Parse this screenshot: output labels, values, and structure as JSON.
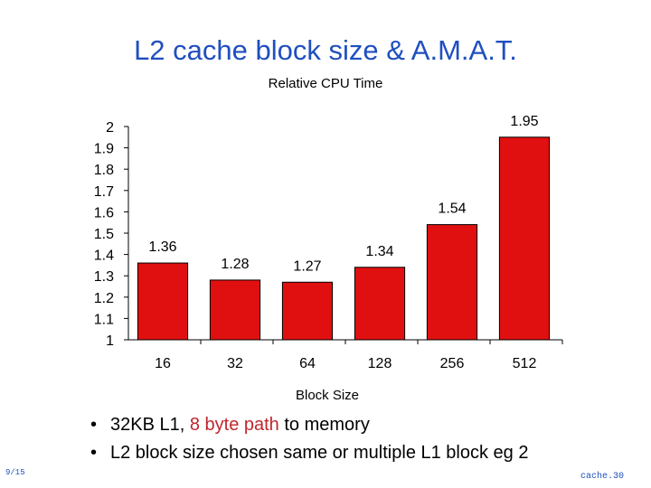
{
  "slide": {
    "title": "L2 cache block size & A.M.A.T.",
    "footer_left": "9/15",
    "footer_right": "cache.30"
  },
  "bullets": [
    {
      "before": "32KB L1, ",
      "highlight": "8 byte path",
      "after": " to memory"
    },
    {
      "before": "L2 block size chosen same or multiple L1 block eg 2",
      "highlight": "",
      "after": ""
    }
  ],
  "colors": {
    "bar": "#e01010",
    "bar_edge": "#000000",
    "title": "#1f4fbf",
    "highlight": "#c0262c"
  },
  "chart_data": {
    "type": "bar",
    "title": "Relative CPU Time",
    "xlabel": "Block Size",
    "ylabel": "",
    "categories": [
      "16",
      "32",
      "64",
      "128",
      "256",
      "512"
    ],
    "values": [
      1.36,
      1.28,
      1.27,
      1.34,
      1.54,
      1.95
    ],
    "data_labels": [
      "1.36",
      "1.28",
      "1.27",
      "1.34",
      "1.54",
      "1.95"
    ],
    "ylim": [
      1,
      2
    ],
    "yticks": [
      "1",
      "1.1",
      "1.2",
      "1.3",
      "1.4",
      "1.5",
      "1.6",
      "1.7",
      "1.8",
      "1.9",
      "2"
    ],
    "grid": false,
    "legend": "none"
  }
}
